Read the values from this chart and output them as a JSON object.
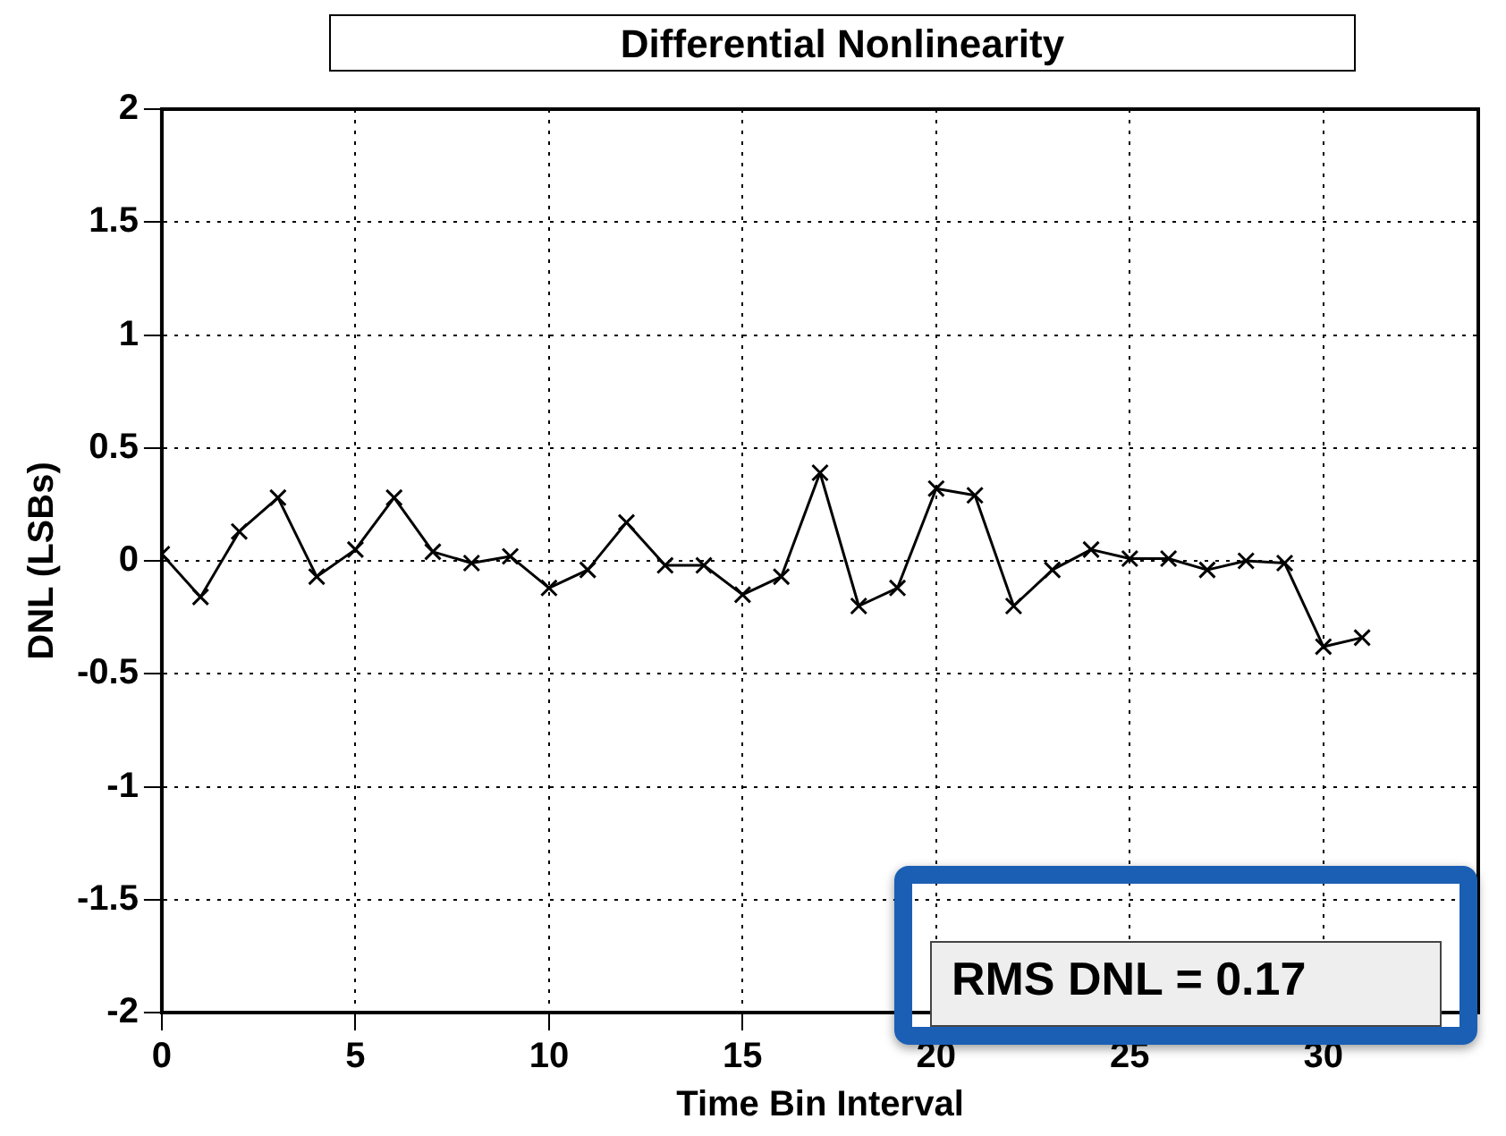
{
  "chart_data": {
    "type": "line",
    "title": "Differential Nonlinearity",
    "xlabel": "Time Bin Interval",
    "ylabel": "DNL (LSBs)",
    "x": [
      0,
      1,
      2,
      3,
      4,
      5,
      6,
      7,
      8,
      9,
      10,
      11,
      12,
      13,
      14,
      15,
      16,
      17,
      18,
      19,
      20,
      21,
      22,
      23,
      24,
      25,
      26,
      27,
      28,
      29,
      30,
      31
    ],
    "series": [
      {
        "color": "#000000",
        "values": [
          0.03,
          -0.16,
          0.13,
          0.28,
          -0.07,
          0.05,
          0.28,
          0.04,
          -0.01,
          0.02,
          -0.12,
          -0.04,
          0.17,
          -0.02,
          -0.02,
          -0.15,
          -0.07,
          0.39,
          -0.2,
          -0.12,
          0.32,
          0.29,
          -0.2,
          -0.04,
          0.05,
          0.01,
          0.01,
          -0.04,
          0,
          -0.01,
          -0.38,
          -0.34
        ]
      }
    ],
    "xlim": [
      0,
      34
    ],
    "xticks": [
      0,
      5,
      10,
      15,
      20,
      25,
      30
    ],
    "ylim": [
      -2,
      2
    ],
    "yticks": [
      -2,
      -1.5,
      -1,
      -0.5,
      0,
      0.5,
      1,
      1.5,
      2
    ],
    "grid": true,
    "marker": "cross",
    "line_style": "solid",
    "legend": false,
    "annotations": [
      "RMS DNL = 0.17"
    ]
  }
}
